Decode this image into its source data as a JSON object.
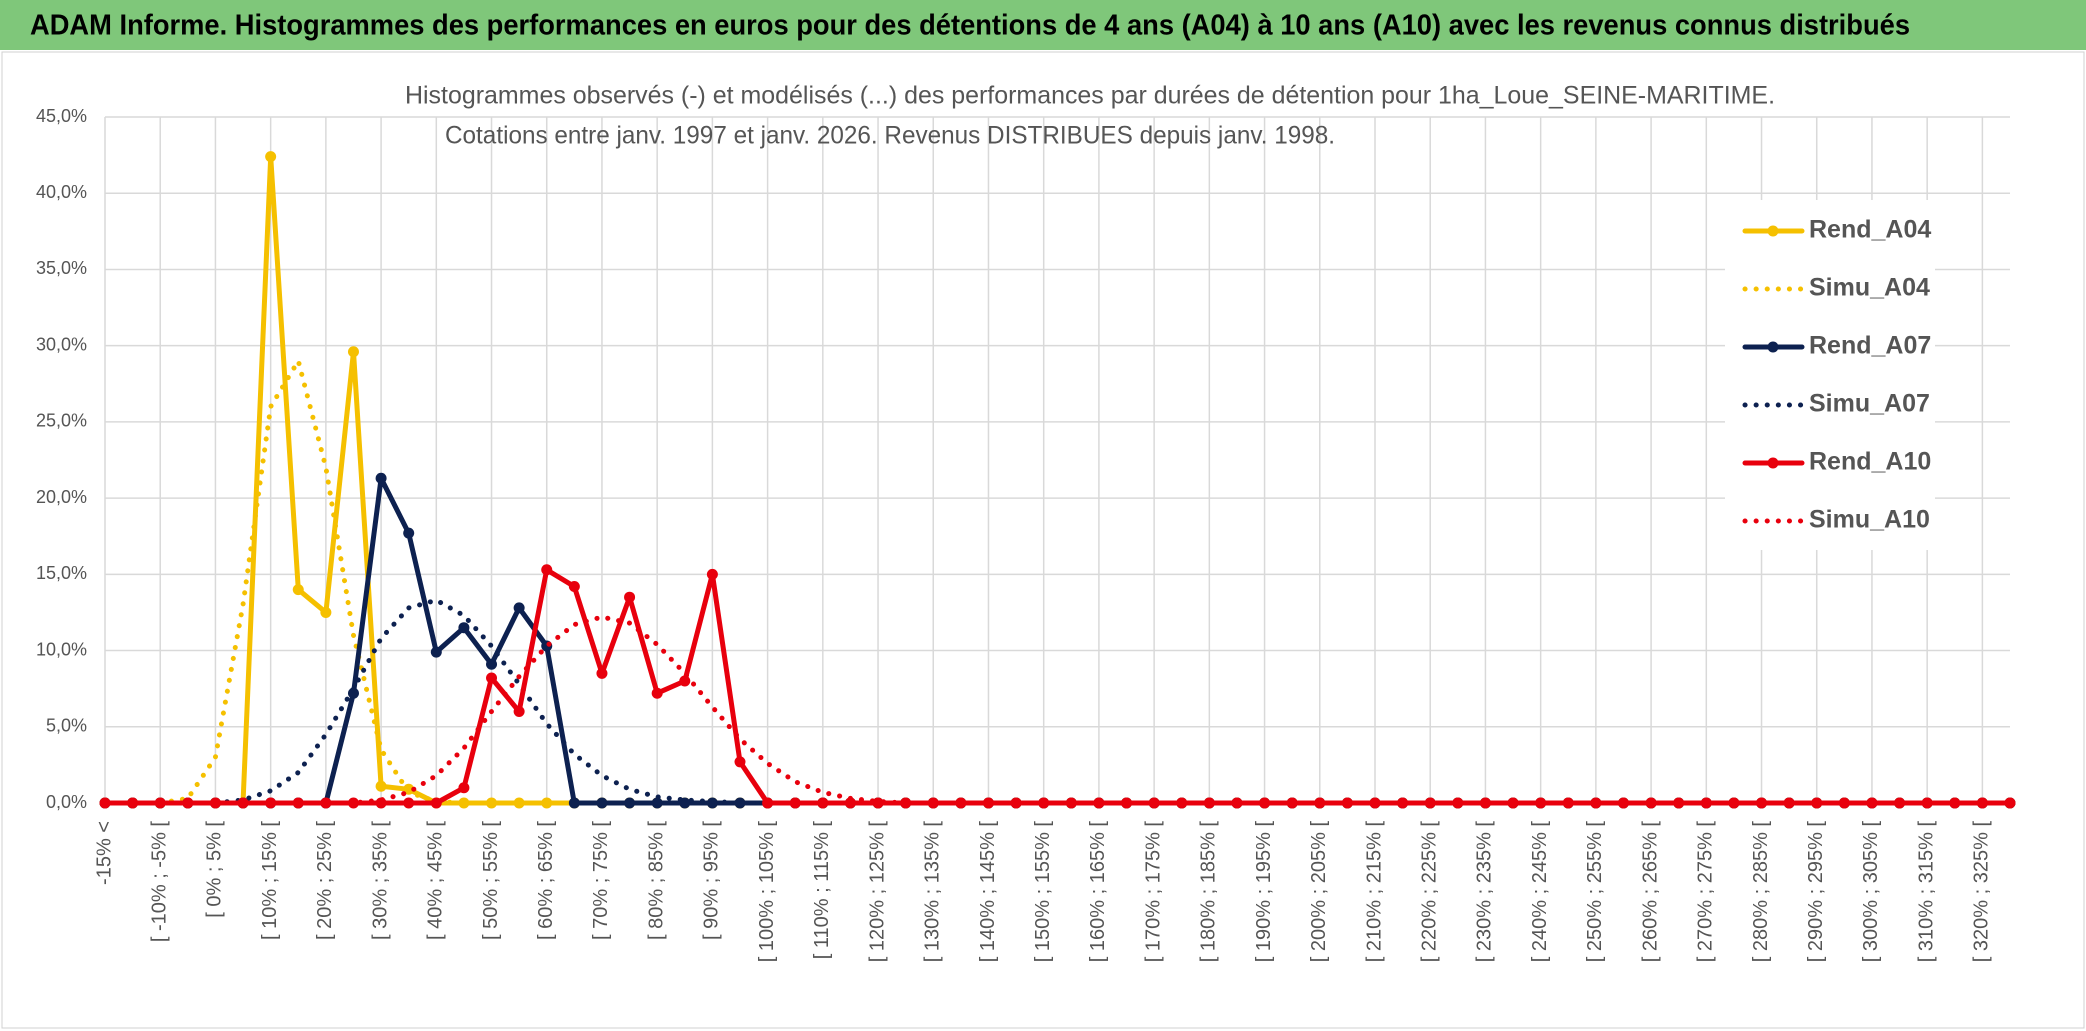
{
  "header": {
    "title": "ADAM Informe. Histogrammes des performances en euros pour des détentions de 4 ans (A04) à 10 ans (A10) avec les revenus connus distribués"
  },
  "chart_data": {
    "type": "line",
    "title": "Histogrammes observés (-) et modélisés (...) des performances par durées de détention pour 1ha_Loue_SEINE-MARITIME.",
    "subtitle": "Cotations entre janv. 1997 et janv. 2026. Revenus DISTRIBUES depuis janv. 1998.",
    "categories": [
      "-15% <",
      null,
      "[ -10% ; -5% [",
      null,
      "[ 0% ; 5% [",
      null,
      "[ 10% ; 15% [",
      null,
      "[ 20% ; 25% [",
      null,
      "[ 30% ; 35% [",
      null,
      "[ 40% ; 45% [",
      null,
      "[ 50% ; 55% [",
      null,
      "[ 60% ; 65% [",
      null,
      "[ 70% ; 75% [",
      null,
      "[ 80% ; 85% [",
      null,
      "[ 90% ; 95% [",
      null,
      "[ 100% ; 105% [",
      null,
      "[ 110% ; 115% [",
      null,
      "[ 120% ; 125% [",
      null,
      "[ 130% ; 135% [",
      null,
      "[ 140% ; 145% [",
      null,
      "[ 150% ; 155% [",
      null,
      "[ 160% ; 165% [",
      null,
      "[ 170% ; 175% [",
      null,
      "[ 180% ; 185% [",
      null,
      "[ 190% ; 195% [",
      null,
      "[ 200% ; 205% [",
      null,
      "[ 210% ; 215% [",
      null,
      "[ 220% ; 225% [",
      null,
      "[ 230% ; 235% [",
      null,
      "[ 240% ; 245% [",
      null,
      "[ 250% ; 255% [",
      null,
      "[ 260% ; 265% [",
      null,
      "[ 270% ; 275% [",
      null,
      "[ 280% ; 285% [",
      null,
      "[ 290% ; 295% [",
      null,
      "[ 300% ; 305% [",
      null,
      "[ 310% ; 315% [",
      null,
      "[ 320% ; 325% [",
      null
    ],
    "series": [
      {
        "name": "Rend_A04",
        "color": "#f5c000",
        "style": "solid",
        "values": [
          0,
          0,
          0,
          0,
          0,
          0,
          42.4,
          14.0,
          12.5,
          29.6,
          1.1,
          0.9,
          0,
          0,
          0,
          0,
          0,
          0,
          0,
          0,
          0,
          0,
          0,
          0,
          0,
          0,
          0,
          0,
          0,
          0,
          0,
          0,
          0,
          0,
          0,
          0,
          0,
          0,
          0,
          0,
          0,
          0,
          0,
          0,
          0,
          0,
          0,
          0,
          0,
          0,
          0,
          0,
          0,
          0,
          0,
          0,
          0,
          0,
          0,
          0,
          0,
          0,
          0,
          0,
          0,
          0,
          0,
          0,
          0,
          0
        ]
      },
      {
        "name": "Simu_A04",
        "color": "#f5c000",
        "style": "dotted",
        "values": [
          0,
          0,
          0,
          0.3,
          3,
          13,
          26,
          29,
          22,
          11,
          3.5,
          0.7,
          0.1,
          0,
          0,
          0,
          0,
          0,
          0,
          0,
          0,
          0,
          0,
          0,
          0,
          0,
          0,
          0,
          0,
          0,
          0,
          0,
          0,
          0,
          0,
          0,
          0,
          0,
          0,
          0,
          0,
          0,
          0,
          0,
          0,
          0,
          0,
          0,
          0,
          0,
          0,
          0,
          0,
          0,
          0,
          0,
          0,
          0,
          0,
          0,
          0,
          0,
          0,
          0,
          0,
          0,
          0,
          0,
          0,
          0
        ]
      },
      {
        "name": "Rend_A07",
        "color": "#0d2150",
        "style": "solid",
        "values": [
          0,
          0,
          0,
          0,
          0,
          0,
          0,
          0,
          0,
          7.2,
          21.3,
          17.7,
          9.9,
          11.5,
          9.1,
          12.8,
          10.3,
          0,
          0,
          0,
          0,
          0,
          0,
          0,
          0,
          0,
          0,
          0,
          0,
          0,
          0,
          0,
          0,
          0,
          0,
          0,
          0,
          0,
          0,
          0,
          0,
          0,
          0,
          0,
          0,
          0,
          0,
          0,
          0,
          0,
          0,
          0,
          0,
          0,
          0,
          0,
          0,
          0,
          0,
          0,
          0,
          0,
          0,
          0,
          0,
          0,
          0,
          0,
          0,
          0
        ]
      },
      {
        "name": "Simu_A07",
        "color": "#0d2150",
        "style": "dotted",
        "values": [
          0,
          0,
          0,
          0,
          0,
          0.2,
          0.8,
          2,
          4.5,
          7.5,
          10.8,
          12.8,
          13.3,
          12.3,
          10.3,
          7.8,
          5.2,
          3.2,
          1.8,
          0.9,
          0.4,
          0.2,
          0.1,
          0,
          0,
          0,
          0,
          0,
          0,
          0,
          0,
          0,
          0,
          0,
          0,
          0,
          0,
          0,
          0,
          0,
          0,
          0,
          0,
          0,
          0,
          0,
          0,
          0,
          0,
          0,
          0,
          0,
          0,
          0,
          0,
          0,
          0,
          0,
          0,
          0,
          0,
          0,
          0,
          0,
          0,
          0,
          0,
          0,
          0,
          0
        ]
      },
      {
        "name": "Rend_A10",
        "color": "#e8000d",
        "style": "solid",
        "values": [
          0,
          0,
          0,
          0,
          0,
          0,
          0,
          0,
          0,
          0,
          0,
          0,
          0,
          1.0,
          8.2,
          6.0,
          15.3,
          14.2,
          8.5,
          13.5,
          7.2,
          8.0,
          15.0,
          2.7,
          0,
          0,
          0,
          0,
          0,
          0,
          0,
          0,
          0,
          0,
          0,
          0,
          0,
          0,
          0,
          0,
          0,
          0,
          0,
          0,
          0,
          0,
          0,
          0,
          0,
          0,
          0,
          0,
          0,
          0,
          0,
          0,
          0,
          0,
          0,
          0,
          0,
          0,
          0,
          0,
          0,
          0,
          0,
          0,
          0,
          0
        ]
      },
      {
        "name": "Simu_A10",
        "color": "#e8000d",
        "style": "dotted",
        "values": [
          0,
          0,
          0,
          0,
          0,
          0,
          0,
          0,
          0,
          0,
          0.2,
          0.7,
          1.8,
          3.6,
          6.0,
          8.3,
          10.3,
          11.7,
          12.2,
          11.8,
          10.4,
          8.5,
          6.3,
          4.2,
          2.6,
          1.4,
          0.7,
          0.3,
          0.1,
          0,
          0,
          0,
          0,
          0,
          0,
          0,
          0,
          0,
          0,
          0,
          0,
          0,
          0,
          0,
          0,
          0,
          0,
          0,
          0,
          0,
          0,
          0,
          0,
          0,
          0,
          0,
          0,
          0,
          0,
          0,
          0,
          0,
          0,
          0,
          0,
          0,
          0,
          0,
          0,
          0
        ]
      }
    ],
    "ylim": [
      0,
      45
    ],
    "yticks": [
      {
        "value": 0,
        "label": "0,0%"
      },
      {
        "value": 5,
        "label": "5,0%"
      },
      {
        "value": 10,
        "label": "10,0%"
      },
      {
        "value": 15,
        "label": "15,0%"
      },
      {
        "value": 20,
        "label": "20,0%"
      },
      {
        "value": 25,
        "label": "25,0%"
      },
      {
        "value": 30,
        "label": "30,0%"
      },
      {
        "value": 35,
        "label": "35,0%"
      },
      {
        "value": 40,
        "label": "40,0%"
      },
      {
        "value": 45,
        "label": "45,0%"
      }
    ],
    "grid": true,
    "legend": "right"
  }
}
